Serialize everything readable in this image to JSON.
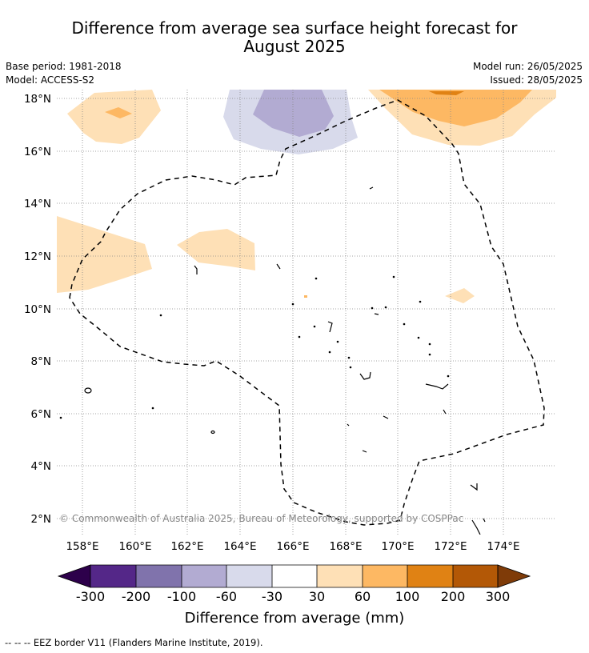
{
  "title": {
    "line1": "Difference from average sea surface height forecast for",
    "line2": "August 2025"
  },
  "meta": {
    "base_period": "Base period: 1981-2018",
    "model": "Model: ACCESS-S2",
    "model_run": "Model run: 26/05/2025",
    "issued": "Issued: 28/05/2025"
  },
  "map": {
    "lon_ticks": [
      "158°E",
      "160°E",
      "162°E",
      "164°E",
      "166°E",
      "168°E",
      "170°E",
      "172°E",
      "174°E"
    ],
    "lat_ticks": [
      "2°N",
      "4°N",
      "6°N",
      "8°N",
      "10°N",
      "12°N",
      "14°N",
      "16°N",
      "18°N"
    ],
    "copyright": "© Commonwealth of Australia 2025, Bureau of Meteorology, supported by COSPPac",
    "gridlines": true
  },
  "colorbar": {
    "ticks": [
      "-300",
      "-200",
      "-100",
      "-60",
      "-30",
      "30",
      "60",
      "100",
      "200",
      "300"
    ],
    "colors": [
      "#2d004b",
      "#542788",
      "#8073ac",
      "#b2abd2",
      "#d8daeb",
      "#ffffff",
      "#fee0b6",
      "#fdb863",
      "#e08214",
      "#b35806",
      "#7f3b08"
    ],
    "label": "Difference from average (mm)"
  },
  "footer": "-- -- -- EEZ border V11 (Flanders Marine Institute, 2019)."
}
